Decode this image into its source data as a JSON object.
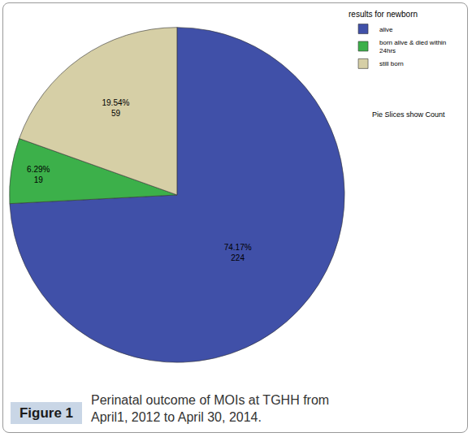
{
  "chart_data": {
    "type": "pie",
    "legend_title": "results for newborn",
    "categories": [
      "alive",
      "born alive & died within 24hrs",
      "still born"
    ],
    "values": [
      224,
      19,
      59
    ],
    "value_labels": [
      [
        "74.17%",
        "224"
      ],
      [
        "6.29%",
        "19"
      ],
      [
        "19.54%",
        "59"
      ]
    ],
    "colors": [
      "#4050a8",
      "#3cb04a",
      "#d6cfa6"
    ],
    "data_labels": true,
    "legend": "top right",
    "annotations": [
      "Pie Slices show Count"
    ],
    "caption": {
      "label": "Figure 1",
      "text": "Perinatal outcome of MOIs at TGHH from April1, 2012 to April 30, 2014."
    }
  }
}
